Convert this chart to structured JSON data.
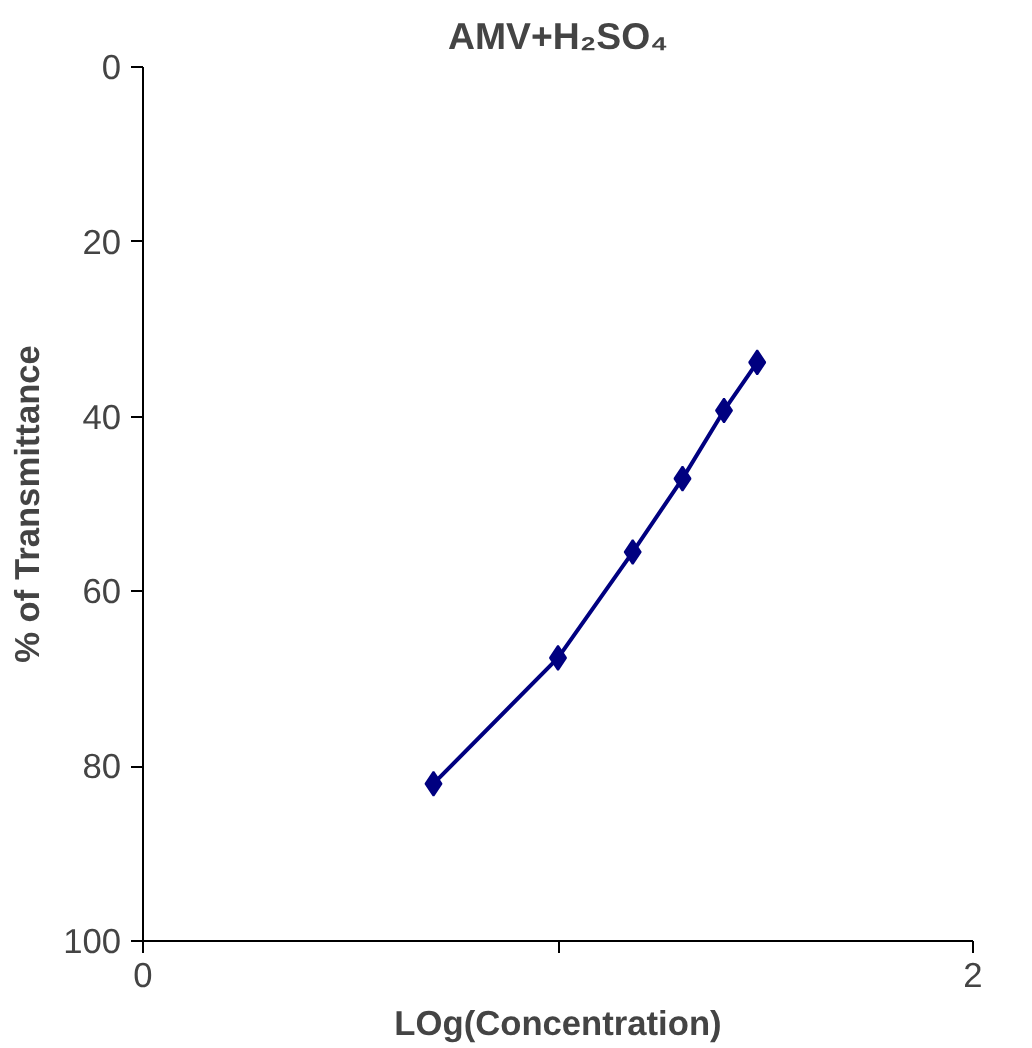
{
  "chart_data": {
    "type": "line",
    "title": "AMV+H₂SO₄",
    "xlabel": "LOg(Concentration)",
    "ylabel": "% of Transmittance",
    "x": [
      0.7,
      1.0,
      1.18,
      1.3,
      1.4,
      1.48
    ],
    "series": [
      {
        "color": "#000080",
        "values": [
          82,
          67.6,
          55.5,
          47.1,
          39.3,
          33.8
        ]
      }
    ],
    "xlim": [
      0,
      2
    ],
    "xticks": [
      0,
      {
        "value": 1,
        "label": null
      },
      2
    ],
    "ylim": [
      100,
      0
    ],
    "yticks": [
      0,
      20,
      40,
      60,
      80,
      100
    ],
    "marker": "diamond",
    "line_style": "solid",
    "grid": false
  }
}
